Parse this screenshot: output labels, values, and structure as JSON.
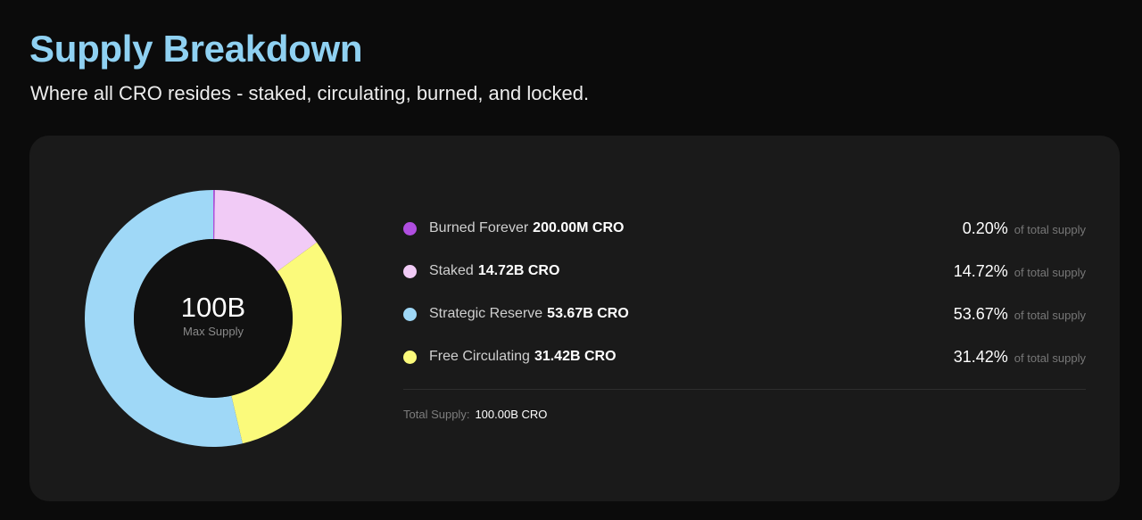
{
  "header": {
    "title": "Supply Breakdown",
    "subtitle": "Where all CRO resides - staked, circulating, burned, and locked."
  },
  "center": {
    "value": "100B",
    "label": "Max Supply"
  },
  "colors": {
    "background": "#0b0b0b",
    "card": "#1a1a1a",
    "title": "#8fd1f2",
    "burned": "#b04ee0",
    "staked": "#f1cbf6",
    "reserve": "#9fd8f7",
    "circulating": "#fbfa7b"
  },
  "legend": [
    {
      "key": "burned",
      "name": "Burned Forever",
      "amount": "200.00M CRO",
      "pct": "0.20%",
      "of": "of total supply"
    },
    {
      "key": "staked",
      "name": "Staked",
      "amount": "14.72B CRO",
      "pct": "14.72%",
      "of": "of total supply"
    },
    {
      "key": "reserve",
      "name": "Strategic Reserve",
      "amount": "53.67B CRO",
      "pct": "53.67%",
      "of": "of total supply"
    },
    {
      "key": "circulating",
      "name": "Free Circulating",
      "amount": "31.42B CRO",
      "pct": "31.42%",
      "of": "of total supply"
    }
  ],
  "total": {
    "label": "Total Supply:",
    "value": "100.00B CRO"
  },
  "chart_data": {
    "type": "pie",
    "style": "donut",
    "categories": [
      "Burned Forever",
      "Staked",
      "Strategic Reserve",
      "Free Circulating"
    ],
    "values": [
      0.2,
      14.72,
      53.67,
      31.42
    ],
    "unit": "%",
    "colors": [
      "#b04ee0",
      "#f1cbf6",
      "#9fd8f7",
      "#fbfa7b"
    ],
    "legend_position": "right"
  }
}
